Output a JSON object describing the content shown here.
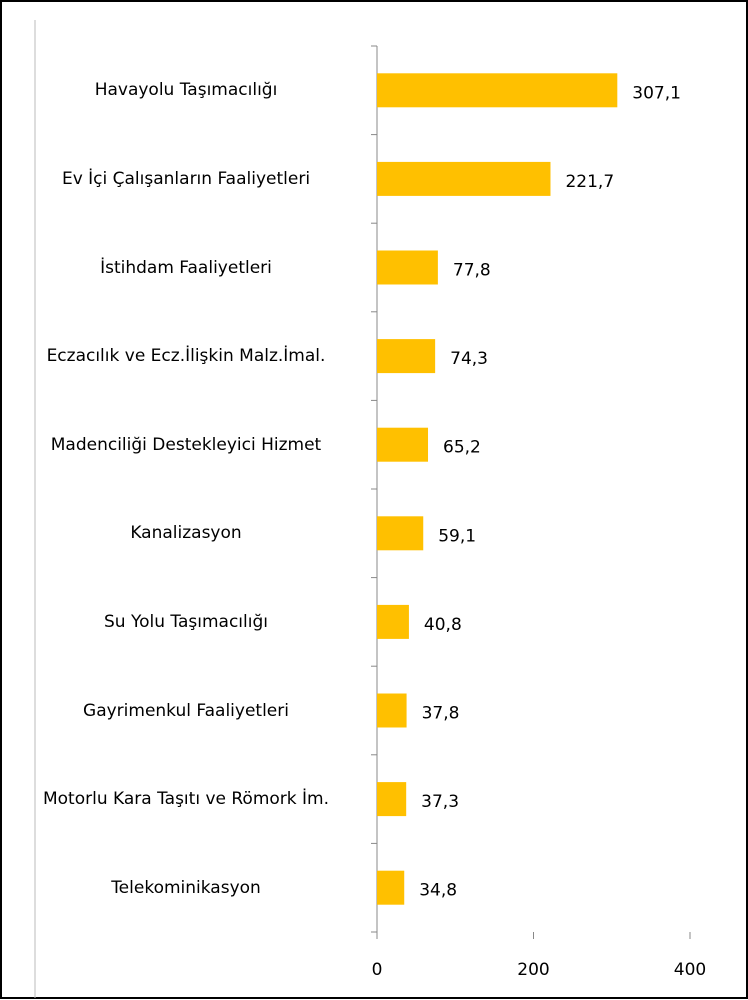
{
  "chart_data": {
    "type": "bar",
    "orientation": "horizontal",
    "categories": [
      "Havayolu Taşımacılığı",
      "Ev İçi Çalışanların Faaliyetleri",
      "İstihdam Faaliyetleri",
      "Eczacılık ve Ecz.İlişkin Malz.İmal.",
      "Madenciliği Destekleyici Hizmet",
      "Kanalizasyon",
      "Su Yolu Taşımacılığı",
      "Gayrimenkul Faaliyetleri",
      "Motorlu Kara Taşıtı ve Römork İm.",
      "Telekominikasyon"
    ],
    "values": [
      307.1,
      221.7,
      77.8,
      74.3,
      65.2,
      59.1,
      40.8,
      37.8,
      37.3,
      34.8
    ],
    "value_labels": [
      "307,1",
      "221,7",
      "77,8",
      "74,3",
      "65,2",
      "59,1",
      "40,8",
      "37,8",
      "37,3",
      "34,8"
    ],
    "color": "#ffc000",
    "xlim": [
      0,
      400
    ],
    "xticks": [
      0,
      200,
      400
    ]
  }
}
